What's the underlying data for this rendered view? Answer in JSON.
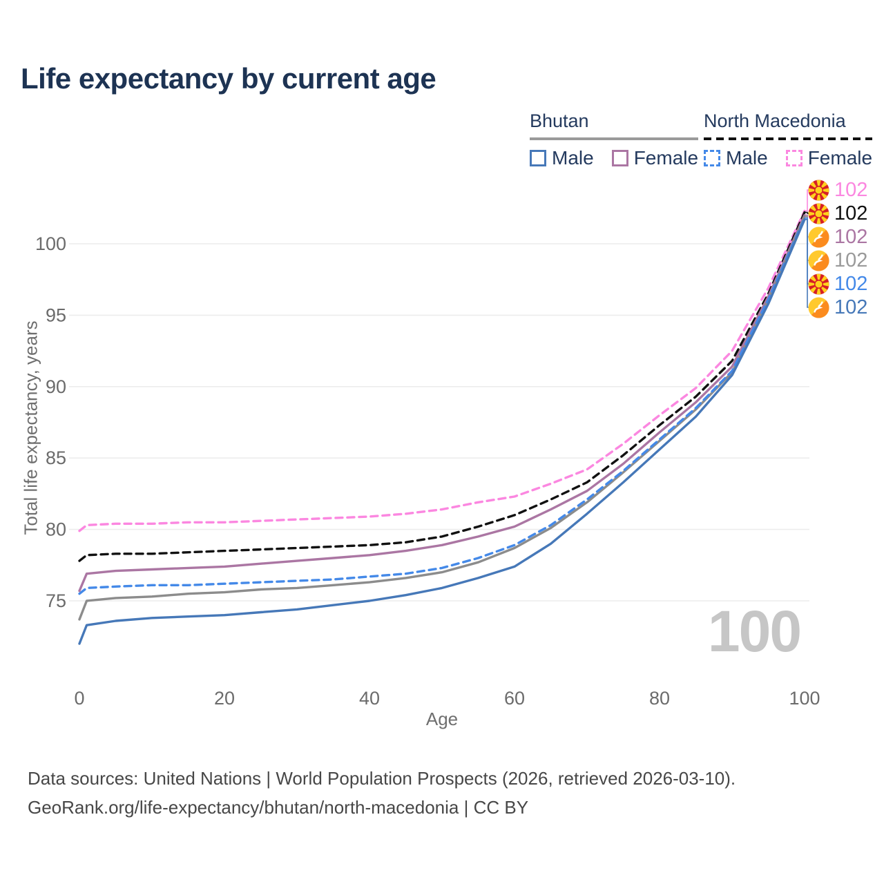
{
  "title": "Life expectancy by current age",
  "legend": {
    "bhutan": {
      "label": "Bhutan",
      "underline_color": "#9a9a9a",
      "underline_style": "solid",
      "items": [
        {
          "label": "Male",
          "color": "#4678b8"
        },
        {
          "label": "Female",
          "color": "#ab76a3"
        }
      ]
    },
    "north_macedonia": {
      "label": "North Macedonia",
      "underline_color": "#111111",
      "underline_style": "dashed",
      "items": [
        {
          "label": "Male",
          "color": "#4489e8"
        },
        {
          "label": "Female",
          "color": "#fb87e0"
        }
      ]
    }
  },
  "chart_data": {
    "type": "line",
    "title": "Life expectancy by current age",
    "xlabel": "Age",
    "ylabel": "Total life expectancy, years",
    "x": [
      0,
      1,
      5,
      10,
      15,
      20,
      25,
      30,
      35,
      40,
      45,
      50,
      55,
      60,
      65,
      70,
      75,
      80,
      85,
      90,
      95,
      100
    ],
    "xticks": [
      0,
      20,
      40,
      60,
      80,
      100
    ],
    "yticks": [
      75,
      80,
      85,
      90,
      95,
      100
    ],
    "xlim": [
      0,
      100
    ],
    "ylim": [
      71,
      103
    ],
    "grid": true,
    "legend_position": "top-right",
    "series": [
      {
        "name": "North Macedonia Female",
        "country": "north-macedonia",
        "sex": "female",
        "color": "#fb87e0",
        "dash": "dashed",
        "end_label": "102",
        "flag": "north-macedonia",
        "values": [
          79.9,
          80.3,
          80.4,
          80.4,
          80.5,
          80.5,
          80.6,
          80.7,
          80.8,
          80.9,
          81.1,
          81.4,
          81.9,
          82.3,
          83.2,
          84.2,
          86.0,
          88.0,
          89.9,
          92.5,
          96.9,
          102.3
        ]
      },
      {
        "name": "North Macedonia Total",
        "country": "north-macedonia",
        "sex": "total",
        "color": "#111111",
        "dash": "dashed",
        "end_label": "102",
        "flag": "north-macedonia",
        "values": [
          77.8,
          78.2,
          78.3,
          78.3,
          78.4,
          78.5,
          78.6,
          78.7,
          78.8,
          78.9,
          79.1,
          79.5,
          80.2,
          81.0,
          82.1,
          83.3,
          85.2,
          87.3,
          89.3,
          91.8,
          96.5,
          102.2
        ]
      },
      {
        "name": "Bhutan Female",
        "country": "bhutan",
        "sex": "female",
        "color": "#ab76a3",
        "dash": "solid",
        "end_label": "102",
        "flag": "bhutan",
        "values": [
          75.7,
          76.9,
          77.1,
          77.2,
          77.3,
          77.4,
          77.6,
          77.8,
          78.0,
          78.2,
          78.5,
          78.9,
          79.5,
          80.2,
          81.4,
          82.7,
          84.6,
          86.8,
          88.9,
          91.4,
          96.3,
          102.0
        ]
      },
      {
        "name": "Bhutan Total",
        "country": "bhutan",
        "sex": "total",
        "color": "#8c8c8c",
        "dash": "solid",
        "end_label": "102",
        "flag": "bhutan",
        "values": [
          73.7,
          75.0,
          75.2,
          75.3,
          75.5,
          75.6,
          75.8,
          75.9,
          76.1,
          76.3,
          76.6,
          77.0,
          77.7,
          78.7,
          80.1,
          81.9,
          84.0,
          86.2,
          88.4,
          91.0,
          96.1,
          101.9
        ]
      },
      {
        "name": "North Macedonia Male",
        "country": "north-macedonia",
        "sex": "male",
        "color": "#4489e8",
        "dash": "dashed",
        "end_label": "102",
        "flag": "north-macedonia",
        "values": [
          75.5,
          75.9,
          76.0,
          76.1,
          76.1,
          76.2,
          76.3,
          76.4,
          76.5,
          76.7,
          76.9,
          77.3,
          78.0,
          78.9,
          80.3,
          82.1,
          84.1,
          86.3,
          88.5,
          91.1,
          96.1,
          101.8
        ]
      },
      {
        "name": "Bhutan Male",
        "country": "bhutan",
        "sex": "male",
        "color": "#4678b8",
        "dash": "solid",
        "end_label": "102",
        "flag": "bhutan",
        "values": [
          72.0,
          73.3,
          73.6,
          73.8,
          73.9,
          74.0,
          74.2,
          74.4,
          74.7,
          75.0,
          75.4,
          75.9,
          76.6,
          77.4,
          79.0,
          81.1,
          83.3,
          85.6,
          87.9,
          90.8,
          95.8,
          101.7
        ]
      }
    ]
  },
  "watermark": "100",
  "footer": {
    "line1": "Data sources: United Nations | World Population Prospects (2026, retrieved 2026-03-10).",
    "line2": "GeoRank.org/life-expectancy/bhutan/north-macedonia | CC BY"
  }
}
